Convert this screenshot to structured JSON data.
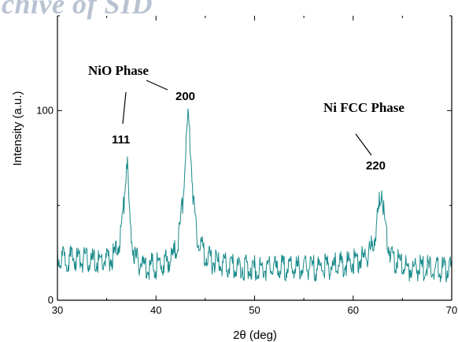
{
  "watermark": "chive of SID",
  "colors": {
    "series": "#1a8a8a",
    "axis": "#000000"
  },
  "chart_data": {
    "type": "line",
    "title": "",
    "xlabel": "2θ (deg)",
    "ylabel": "Intensity (a.u.)",
    "xlim": [
      30,
      70
    ],
    "ylim": [
      0,
      150
    ],
    "xticks": [
      30,
      40,
      50,
      60,
      70
    ],
    "yticks": [
      0,
      100
    ],
    "grid": false,
    "legend": "none",
    "series": [
      {
        "x": [
          30,
          31,
          32,
          33,
          34,
          35,
          35.5,
          36,
          36.4,
          36.7,
          36.9,
          37.0,
          37.1,
          37.2,
          37.4,
          37.7,
          38,
          39,
          40,
          41,
          41.8,
          42.3,
          42.7,
          43.0,
          43.2,
          43.3,
          43.5,
          43.8,
          44.2,
          44.8,
          45.5,
          47,
          50,
          53,
          56,
          58,
          60,
          61,
          61.8,
          62.3,
          62.6,
          62.8,
          62.9,
          63.0,
          63.2,
          63.5,
          63.9,
          64.5,
          65.5,
          67,
          70
        ],
        "y": [
          22,
          22,
          22,
          21,
          20,
          21,
          22,
          26,
          34,
          48,
          64,
          73,
          71,
          55,
          38,
          27,
          21,
          18,
          18,
          20,
          24,
          32,
          52,
          78,
          93,
          95,
          82,
          52,
          34,
          26,
          21,
          18,
          17,
          17,
          17,
          18,
          20,
          22,
          26,
          36,
          48,
          57,
          59,
          54,
          42,
          30,
          23,
          20,
          17,
          17,
          16
        ]
      }
    ],
    "annotations": [
      {
        "text": "NiO Phase"
      },
      {
        "text": "200",
        "x": 43.3
      },
      {
        "text": "111",
        "x": 37.0
      },
      {
        "text": "Ni FCC Phase"
      },
      {
        "text": "220",
        "x": 62.9
      }
    ]
  }
}
